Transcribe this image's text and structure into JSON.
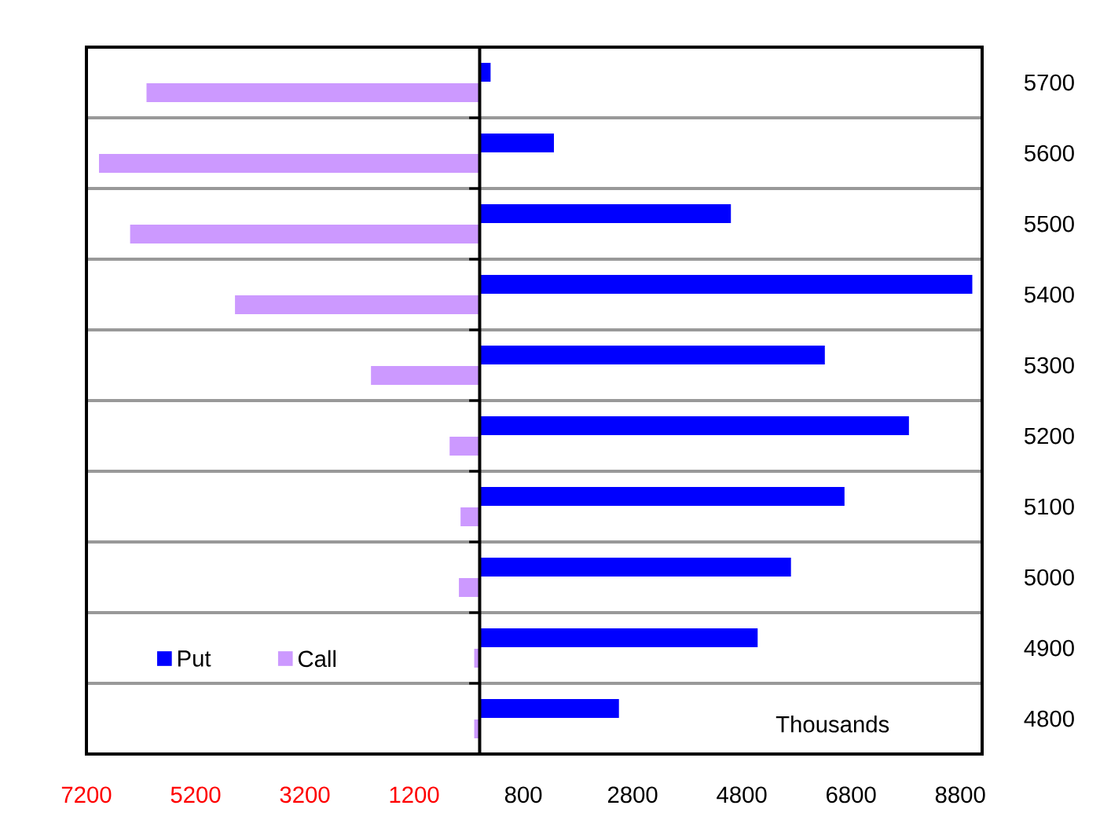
{
  "chart_data": {
    "type": "bar",
    "orientation": "horizontal",
    "categories": [
      "5700",
      "5600",
      "5500",
      "5400",
      "5300",
      "5200",
      "5100",
      "5000",
      "4900",
      "4800"
    ],
    "series": [
      {
        "name": "Put",
        "color": "#0000ff",
        "values": [
          200,
          1360,
          4600,
          9020,
          6320,
          7860,
          6680,
          5700,
          5090,
          2550
        ]
      },
      {
        "name": "Call",
        "color": "#cc99ff",
        "values": [
          -6100,
          -6970,
          -6400,
          -4480,
          -1990,
          -550,
          -350,
          -380,
          -100,
          -100
        ]
      }
    ],
    "xlim": [
      -7200,
      9200
    ],
    "xticks": [
      {
        "value": -7200,
        "label": "7200"
      },
      {
        "value": -5200,
        "label": "5200"
      },
      {
        "value": -3200,
        "label": "3200"
      },
      {
        "value": -1200,
        "label": "1200"
      },
      800,
      2800,
      4800,
      6800,
      8800
    ],
    "grid": "y",
    "legend": "bottom left",
    "annotations": [
      "Thousands"
    ]
  }
}
